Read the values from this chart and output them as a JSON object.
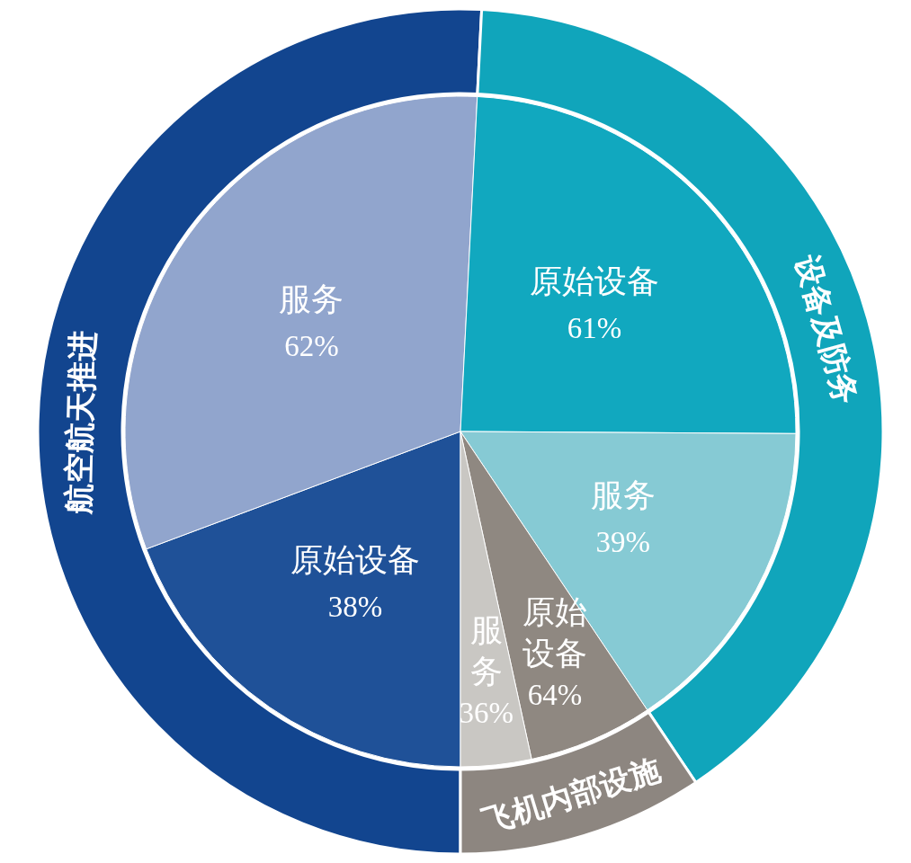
{
  "chart_data": [
    {
      "type": "donut",
      "categories": [
        "航空航天推进",
        "设备及防务",
        "飞机内部设施"
      ],
      "values": [
        50.8,
        39.8,
        9.4
      ],
      "colors": [
        "#12458f",
        "#10a5bb",
        "#8d8680"
      ]
    },
    {
      "type": "pie",
      "categories": [
        "原始设备",
        "服务",
        "原始设备",
        "服务",
        "原始设备",
        "服务"
      ],
      "values": [
        19.3,
        31.5,
        24.3,
        15.5,
        6.0,
        3.4
      ],
      "colors": [
        "#1f5198",
        "#91a5cd",
        "#11a8bf",
        "#86cad4",
        "#8f8881",
        "#c9c7c3"
      ],
      "annotations": [
        "38%",
        "62%",
        "61%",
        "39%",
        "64%",
        "36%"
      ]
    }
  ]
}
